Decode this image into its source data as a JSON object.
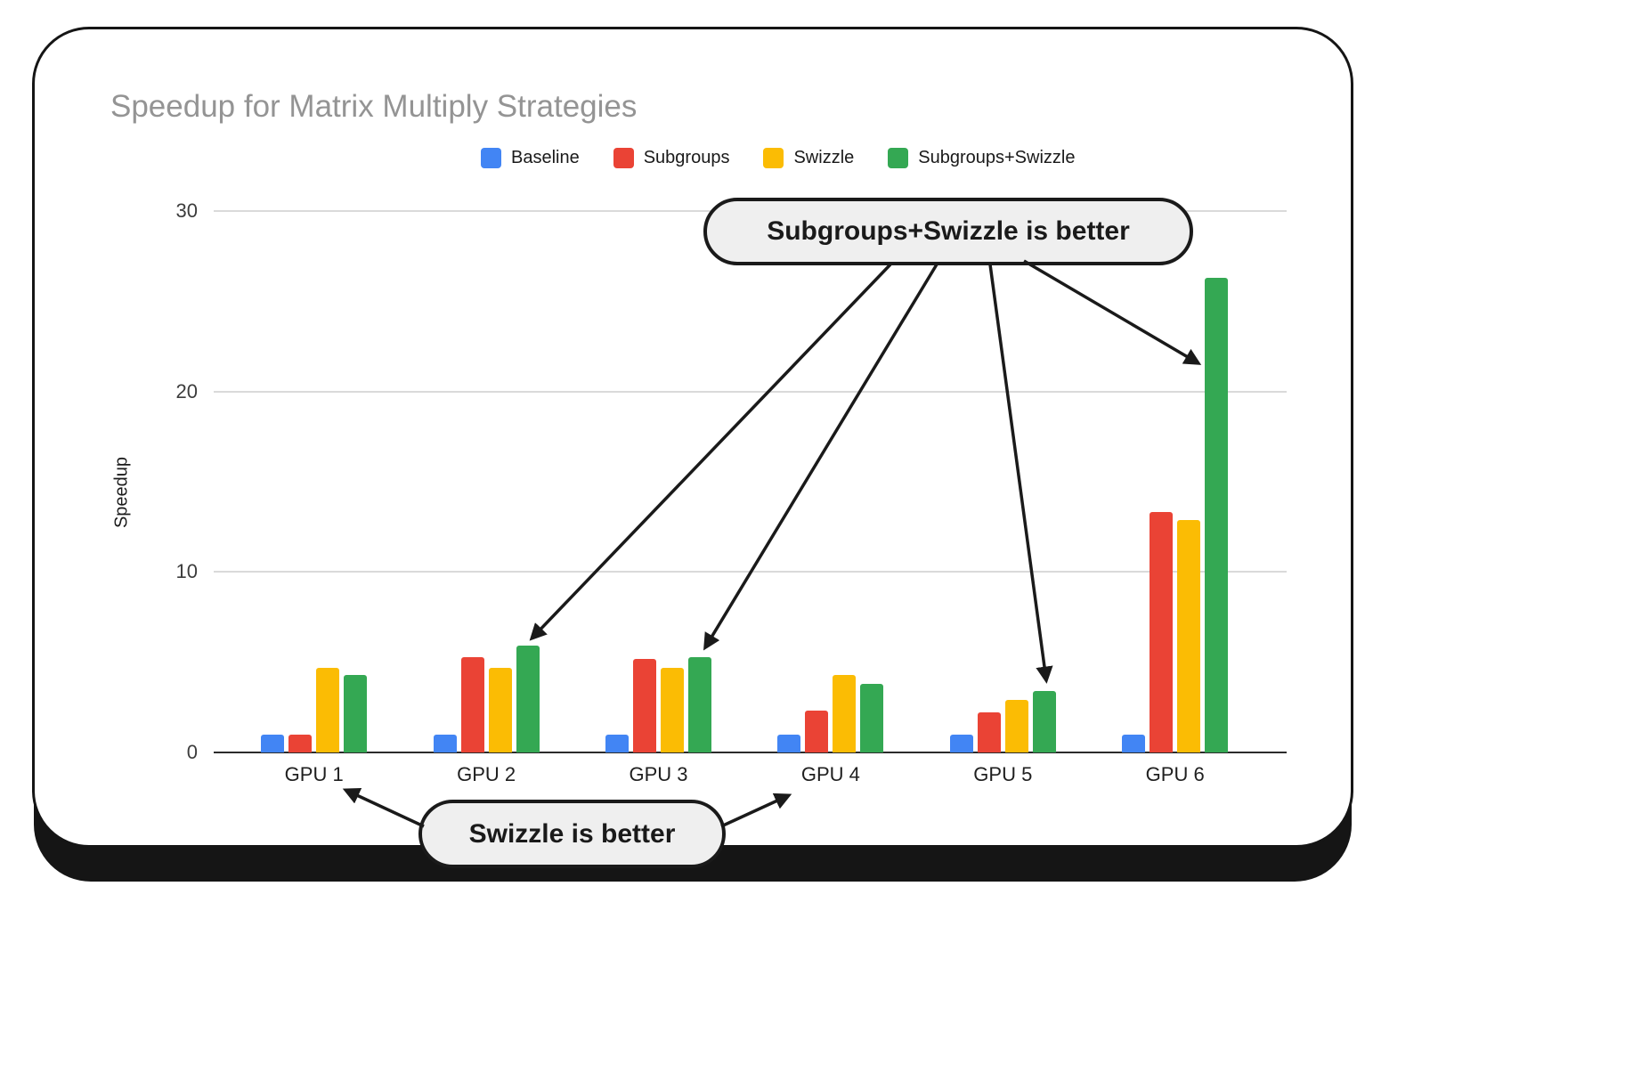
{
  "chart_data": {
    "type": "bar",
    "title": "Speedup for Matrix Multiply Strategies",
    "categories": [
      "GPU 1",
      "GPU 2",
      "GPU 3",
      "GPU 4",
      "GPU 5",
      "GPU 6"
    ],
    "series": [
      {
        "name": "Baseline",
        "color": "#4285F4",
        "values": [
          1.0,
          1.0,
          1.0,
          1.0,
          1.0,
          1.0
        ]
      },
      {
        "name": "Subgroups",
        "color": "#EA4335",
        "values": [
          1.0,
          5.3,
          5.2,
          2.3,
          2.2,
          13.3
        ]
      },
      {
        "name": "Swizzle",
        "color": "#FBBC04",
        "values": [
          4.7,
          4.7,
          4.7,
          4.3,
          2.9,
          12.9
        ]
      },
      {
        "name": "Subgroups+Swizzle",
        "color": "#34A853",
        "values": [
          4.3,
          5.9,
          5.3,
          3.8,
          3.4,
          26.3
        ]
      }
    ],
    "xlabel": "",
    "ylabel": "Speedup",
    "ylim": [
      0,
      30
    ],
    "yticks": [
      0,
      10,
      20,
      30
    ],
    "grid": true,
    "legend_position": "top",
    "annotations": [
      {
        "label": "Subgroups+Swizzle is better",
        "targets": [
          "GPU 2: Subgroups+Swizzle",
          "GPU 3: Subgroups+Swizzle",
          "GPU 5: Subgroups+Swizzle",
          "GPU 6: Subgroups+Swizzle"
        ]
      },
      {
        "label": "Swizzle is better",
        "targets": [
          "GPU 1",
          "GPU 4"
        ]
      }
    ]
  }
}
